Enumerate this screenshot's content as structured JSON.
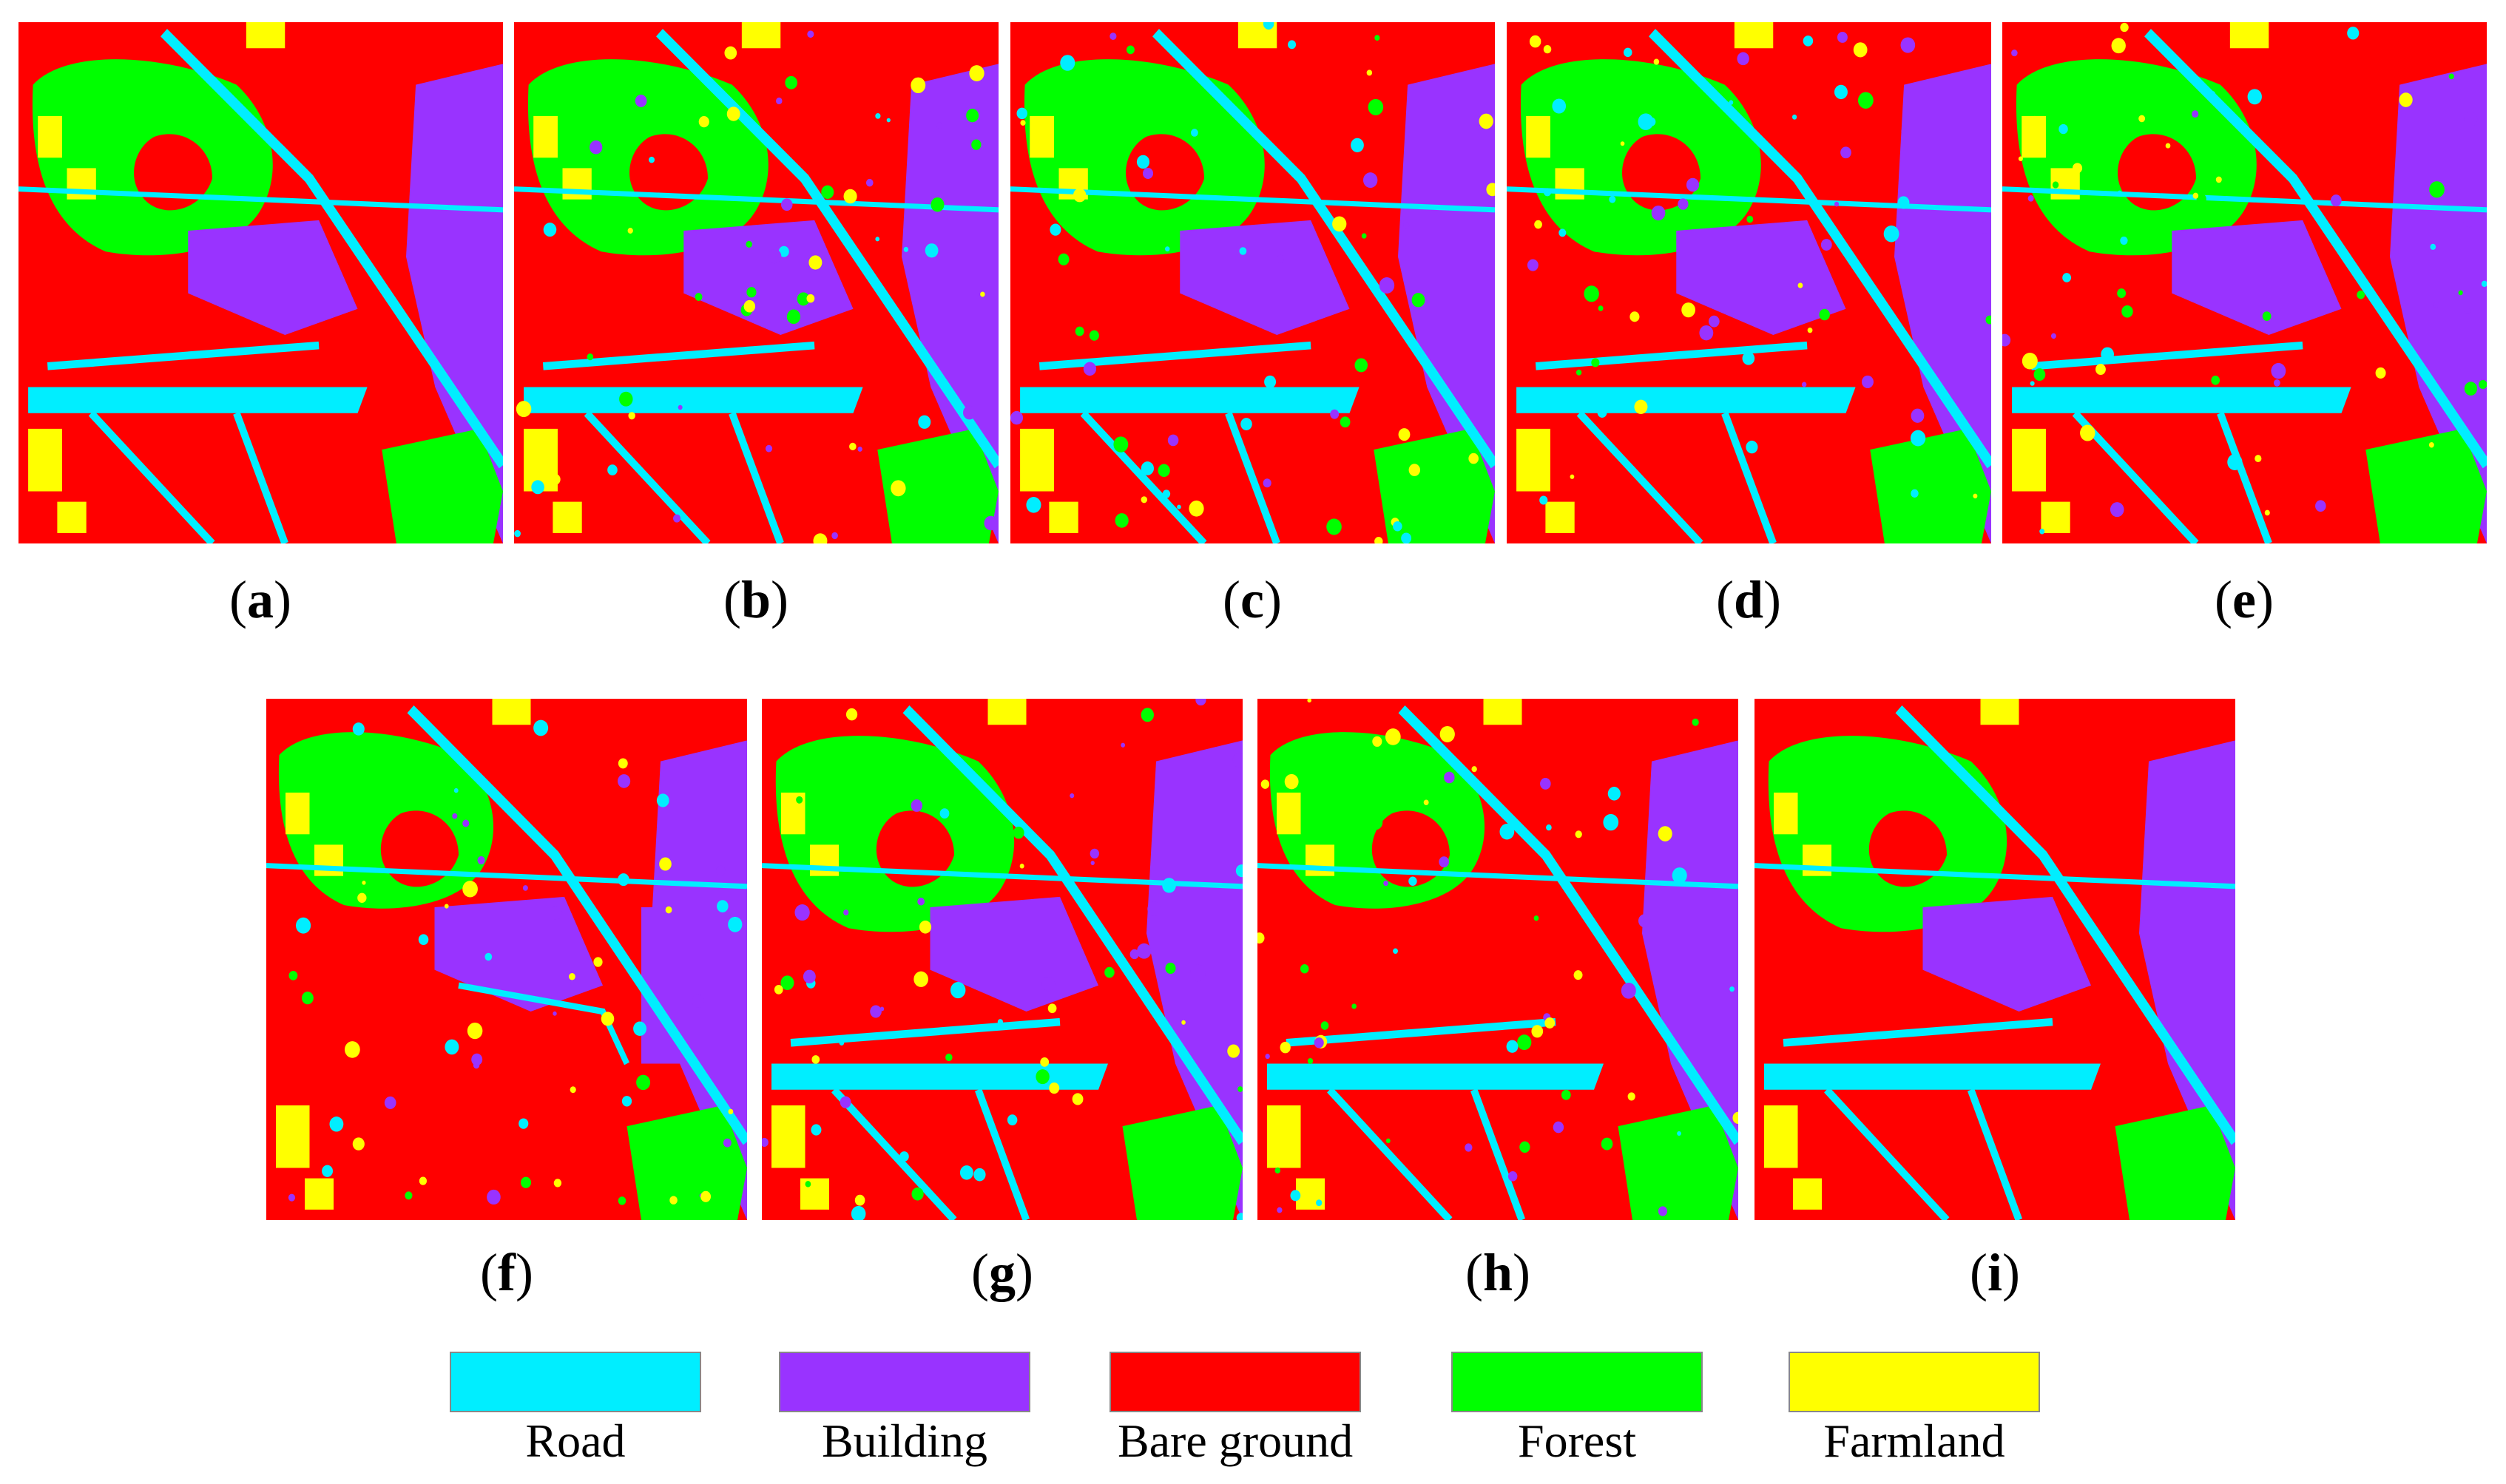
{
  "panels": [
    {
      "id": "a",
      "label": "a"
    },
    {
      "id": "b",
      "label": "b"
    },
    {
      "id": "c",
      "label": "c"
    },
    {
      "id": "d",
      "label": "d"
    },
    {
      "id": "e",
      "label": "e"
    },
    {
      "id": "f",
      "label": "f"
    },
    {
      "id": "g",
      "label": "g"
    },
    {
      "id": "h",
      "label": "h"
    },
    {
      "id": "i",
      "label": "i"
    }
  ],
  "legend": [
    {
      "label": "Road",
      "color": "#00eeff"
    },
    {
      "label": "Building",
      "color": "#9933ff"
    },
    {
      "label": "Bare ground",
      "color": "#ff0000"
    },
    {
      "label": "Forest",
      "color": "#00ff00"
    },
    {
      "label": "Farmland",
      "color": "#ffff00"
    }
  ]
}
